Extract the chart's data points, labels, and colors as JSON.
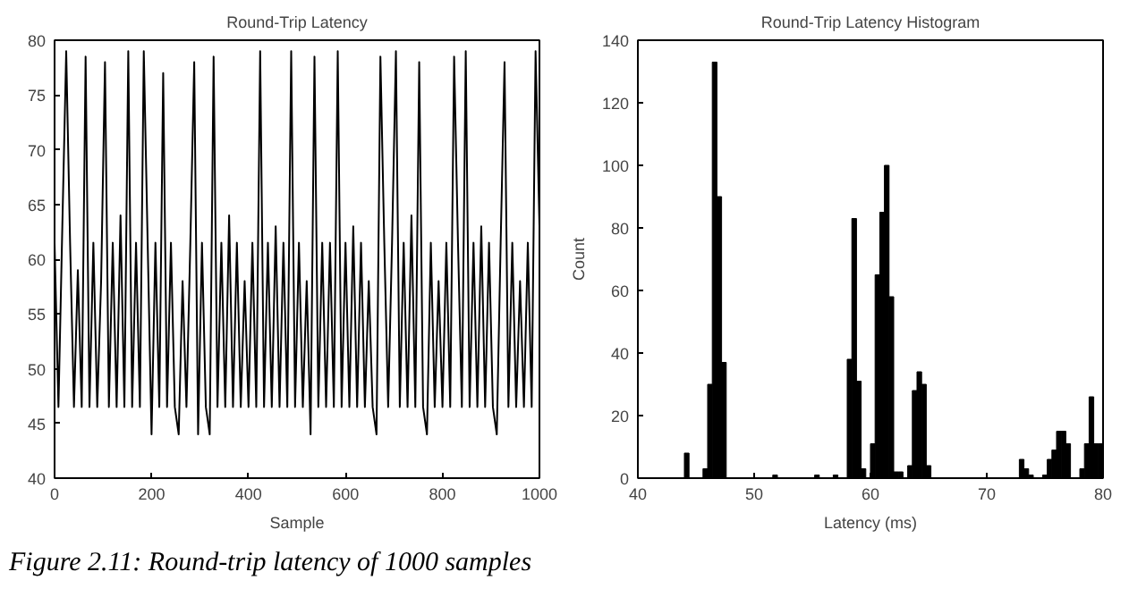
{
  "chart_data": [
    {
      "type": "line",
      "title": "Round-Trip Latency",
      "xlabel": "Sample",
      "xlim": [
        0,
        1000
      ],
      "xticks": [
        0,
        200,
        400,
        600,
        800,
        1000
      ],
      "ylim": [
        40,
        80
      ],
      "yticks": [
        40,
        45,
        50,
        55,
        60,
        65,
        70,
        75,
        80
      ],
      "grid": false,
      "annotations": [
        "Figure 2.11: Round-trip latency of 1000 samples"
      ],
      "series": [
        {
          "color": "#000000",
          "x": [
            0,
            8,
            16,
            24,
            32,
            40,
            48,
            56,
            64,
            72,
            80,
            88,
            96,
            104,
            112,
            120,
            128,
            136,
            144,
            152,
            160,
            168,
            176,
            184,
            192,
            200,
            208,
            216,
            224,
            232,
            240,
            248,
            256,
            264,
            272,
            280,
            288,
            296,
            304,
            312,
            320,
            328,
            336,
            344,
            352,
            360,
            368,
            376,
            384,
            392,
            400,
            408,
            416,
            424,
            432,
            440,
            448,
            456,
            464,
            472,
            480,
            488,
            496,
            504,
            512,
            520,
            528,
            536,
            544,
            552,
            560,
            568,
            576,
            584,
            592,
            600,
            608,
            616,
            624,
            632,
            640,
            648,
            656,
            664,
            672,
            680,
            688,
            696,
            704,
            712,
            720,
            728,
            736,
            744,
            752,
            760,
            768,
            776,
            784,
            792,
            800,
            808,
            816,
            824,
            832,
            840,
            848,
            856,
            864,
            872,
            880,
            888,
            896,
            904,
            912,
            920,
            928,
            936,
            944,
            952,
            960,
            968,
            976,
            984,
            992,
            1000
          ],
          "values": [
            61.5,
            46.5,
            63,
            79,
            61.5,
            46.5,
            59,
            46.5,
            78.5,
            46.5,
            61.5,
            46.5,
            58,
            78,
            46.5,
            61.5,
            46.5,
            64,
            46.5,
            79,
            46.5,
            61.5,
            46.5,
            79,
            61.5,
            44,
            61.5,
            46.5,
            77,
            46.5,
            61.5,
            46.5,
            44,
            58,
            46.5,
            61.5,
            78,
            44,
            61.5,
            46.5,
            44,
            78.5,
            46.5,
            61.5,
            46.5,
            64,
            46.5,
            61.5,
            46.5,
            58,
            46.5,
            61.5,
            46.5,
            79,
            46.5,
            61.5,
            46.5,
            63,
            46.5,
            61.5,
            46.5,
            79,
            46.5,
            61.5,
            46.5,
            58,
            44,
            78.5,
            46.5,
            61.5,
            46.5,
            61.5,
            46.5,
            79,
            46.5,
            61.5,
            46.5,
            63,
            46.5,
            61.5,
            46.5,
            58,
            46.5,
            44,
            78.5,
            61.5,
            46.5,
            61.5,
            79,
            46.5,
            61.5,
            46.5,
            64,
            46.5,
            78,
            46.5,
            44,
            61.5,
            46.5,
            58,
            46.5,
            61.5,
            46.5,
            78.5,
            61.5,
            46.5,
            79,
            46.5,
            61.5,
            46.5,
            63,
            46.5,
            61.5,
            46.5,
            44,
            61.5,
            78,
            46.5,
            61.5,
            46.5,
            58,
            46.5,
            61.5,
            46.5,
            79,
            63
          ]
        }
      ]
    },
    {
      "type": "histogram",
      "title": "Round-Trip Latency Histogram",
      "xlabel": "Latency (ms)",
      "ylabel": "Count",
      "xlim": [
        40,
        80
      ],
      "xticks": [
        40,
        50,
        60,
        70,
        80
      ],
      "ylim": [
        0,
        140
      ],
      "yticks": [
        0,
        20,
        40,
        60,
        80,
        100,
        120,
        140
      ],
      "grid": false,
      "color": "#000000",
      "bins": [
        40,
        40.4,
        40.8,
        41.2,
        41.6,
        42,
        42.4,
        42.8,
        43.2,
        43.6,
        44,
        44.4,
        44.8,
        45.2,
        45.6,
        46,
        46.4,
        46.8,
        47.2,
        47.6,
        48,
        48.4,
        48.8,
        49.2,
        49.6,
        50,
        50.4,
        50.8,
        51.2,
        51.6,
        52,
        52.4,
        52.8,
        53.2,
        53.6,
        54,
        54.4,
        54.8,
        55.2,
        55.6,
        56,
        56.4,
        56.8,
        57.2,
        57.6,
        58,
        58.4,
        58.8,
        59.2,
        59.6,
        60,
        60.4,
        60.8,
        61.2,
        61.6,
        62,
        62.4,
        62.8,
        63.2,
        63.6,
        64,
        64.4,
        64.8,
        65.2,
        65.6,
        66,
        66.4,
        66.8,
        67.2,
        67.6,
        68,
        68.4,
        68.8,
        69.2,
        69.6,
        70,
        70.4,
        70.8,
        71.2,
        71.6,
        72,
        72.4,
        72.8,
        73.2,
        73.6,
        74,
        74.4,
        74.8,
        75.2,
        75.6,
        76,
        76.4,
        76.8,
        77.2,
        77.6,
        78,
        78.4,
        78.8,
        79.2,
        79.6,
        80
      ],
      "values": [
        0,
        0,
        0,
        0,
        0,
        0,
        0,
        0,
        0,
        0,
        8,
        0,
        0,
        0,
        3,
        30,
        133,
        90,
        37,
        0,
        0,
        0,
        0,
        0,
        0,
        0,
        0,
        0,
        0,
        1,
        0,
        0,
        0,
        0,
        0,
        0,
        0,
        0,
        1,
        0,
        0,
        0,
        1,
        0,
        0,
        38,
        83,
        31,
        3,
        0,
        11,
        65,
        85,
        100,
        58,
        2,
        2,
        0,
        4,
        28,
        34,
        30,
        4,
        0,
        0,
        0,
        0,
        0,
        0,
        0,
        0,
        0,
        0,
        0,
        0,
        0,
        0,
        0,
        0,
        0,
        0,
        0,
        6,
        3,
        1,
        0,
        0,
        1,
        6,
        9,
        15,
        15,
        11,
        0,
        0,
        3,
        11,
        26,
        11,
        11
      ]
    }
  ]
}
